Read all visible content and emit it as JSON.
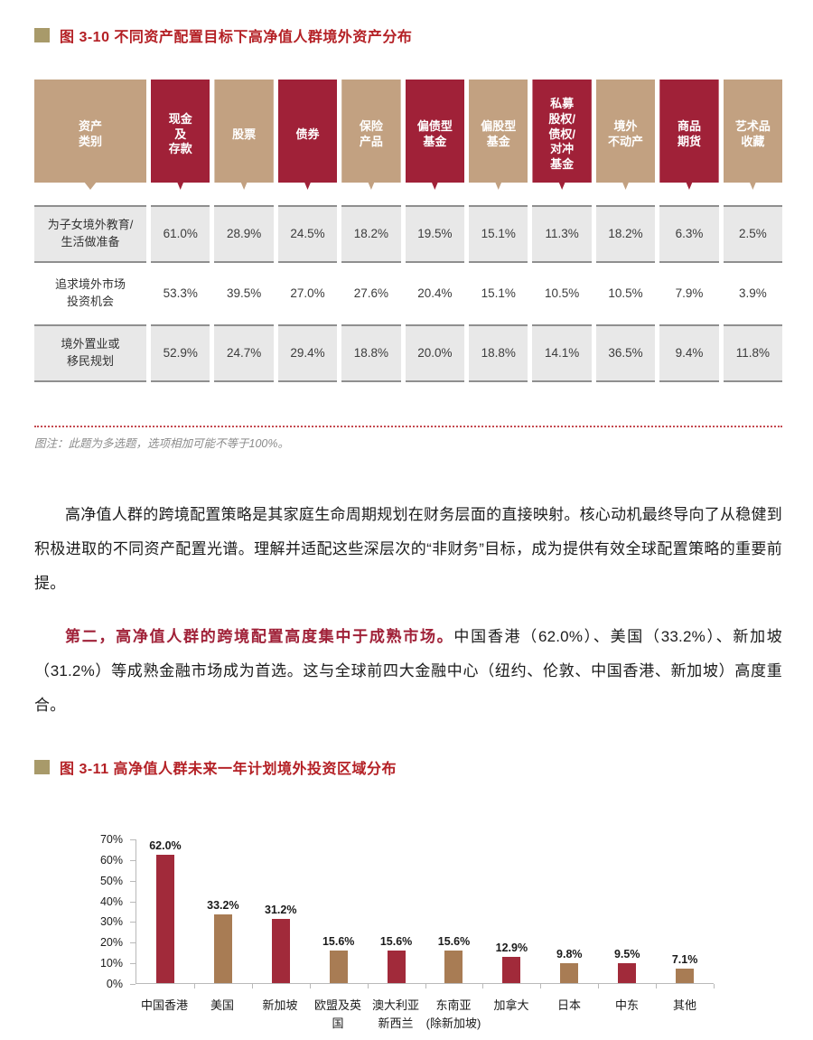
{
  "colors": {
    "crimson": "#a02138",
    "crimson_bar": "#a12a3a",
    "tan": "#c2a181",
    "tan_bar": "#a87c54",
    "olive": "#a89a6a",
    "title_red": "#b42025",
    "dotted_red": "#c4494f",
    "row_gray": "#e8e8e8",
    "row_border": "#8f8f8f",
    "axis": "#b9b9b9"
  },
  "figure1": {
    "title": "图 3-10  不同资产配置目标下高净值人群境外资产分布",
    "note": "图注：此题为多选题，选项相加可能不等于100%。"
  },
  "table": {
    "corner_label": "资产\n类别",
    "columns": [
      {
        "label": "现金\n及\n存款",
        "color": "crimson"
      },
      {
        "label": "股票",
        "color": "tan"
      },
      {
        "label": "债券",
        "color": "crimson"
      },
      {
        "label": "保险\n产品",
        "color": "tan"
      },
      {
        "label": "偏债型\n基金",
        "color": "crimson"
      },
      {
        "label": "偏股型\n基金",
        "color": "tan"
      },
      {
        "label": "私募\n股权/\n债权/\n对冲\n基金",
        "color": "crimson"
      },
      {
        "label": "境外\n不动产",
        "color": "tan"
      },
      {
        "label": "商品\n期货",
        "color": "crimson"
      },
      {
        "label": "艺术品\n收藏",
        "color": "tan"
      }
    ],
    "rows": [
      {
        "label": "为子女境外教育/\n生活做准备",
        "shaded": true,
        "values": [
          "61.0%",
          "28.9%",
          "24.5%",
          "18.2%",
          "19.5%",
          "15.1%",
          "11.3%",
          "18.2%",
          "6.3%",
          "2.5%"
        ]
      },
      {
        "label": "追求境外市场\n投资机会",
        "shaded": false,
        "values": [
          "53.3%",
          "39.5%",
          "27.0%",
          "27.6%",
          "20.4%",
          "15.1%",
          "10.5%",
          "10.5%",
          "7.9%",
          "3.9%"
        ]
      },
      {
        "label": "境外置业或\n移民规划",
        "shaded": true,
        "values": [
          "52.9%",
          "24.7%",
          "29.4%",
          "18.8%",
          "20.0%",
          "18.8%",
          "14.1%",
          "36.5%",
          "9.4%",
          "11.8%"
        ]
      }
    ]
  },
  "paragraphs": {
    "p1": "高净值人群的跨境配置策略是其家庭生命周期规划在财务层面的直接映射。核心动机最终导向了从稳健到积极进取的不同资产配置光谱。理解并适配这些深层次的“非财务”目标，成为提供有效全球配置策略的重要前提。",
    "p2_lead": "第二，高净值人群的跨境配置高度集中于成熟市场。",
    "p2_rest": "中国香港（62.0%）、美国（33.2%）、新加坡（31.2%）等成熟金融市场成为首选。这与全球前四大金融中心（纽约、伦敦、中国香港、新加坡）高度重合。"
  },
  "figure2": {
    "title": "图 3-11  高净值人群未来一年计划境外投资区域分布"
  },
  "chart_data": {
    "type": "bar",
    "title": "高净值人群未来一年计划境外投资区域分布",
    "categories": [
      "中国香港",
      "美国",
      "新加坡",
      "欧盟及英国",
      "澳大利亚\n新西兰",
      "东南亚\n(除新加坡)",
      "加拿大",
      "日本",
      "中东",
      "其他"
    ],
    "values": [
      62.0,
      33.2,
      31.2,
      15.6,
      15.6,
      15.6,
      12.9,
      9.8,
      9.5,
      7.1
    ],
    "value_labels": [
      "62.0%",
      "33.2%",
      "31.2%",
      "15.6%",
      "15.6%",
      "15.6%",
      "12.9%",
      "9.8%",
      "9.5%",
      "7.1%"
    ],
    "bar_colors": [
      "crimson",
      "tan",
      "crimson",
      "tan",
      "crimson",
      "tan",
      "crimson",
      "tan",
      "crimson",
      "tan"
    ],
    "xlabel": "",
    "ylabel": "",
    "ylim": [
      0,
      70
    ],
    "yticks": [
      "0%",
      "10%",
      "20%",
      "30%",
      "40%",
      "50%",
      "60%",
      "70%"
    ],
    "grid": false,
    "legend_position": "none"
  }
}
